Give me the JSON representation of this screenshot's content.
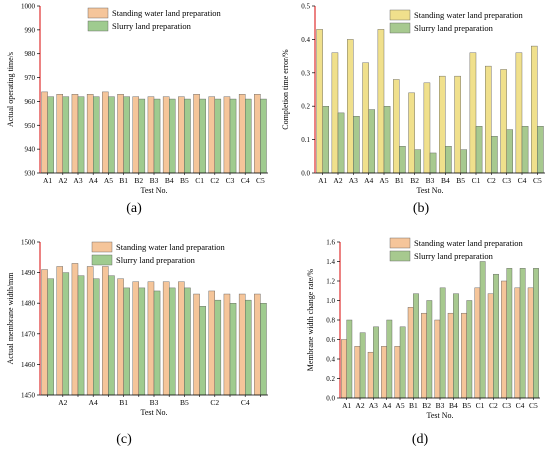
{
  "colors": {
    "standing_water": "#F5C59A",
    "standing_water_alt": "#F0E08C",
    "slurry": "#9FCB8F",
    "slurry_alt": "#A7C98F",
    "axis_red": "#E03030",
    "edge": "#555555"
  },
  "chart_data": [
    {
      "panel": "(a)",
      "type": "bar",
      "ylabel": "Actual operating time/s",
      "xlabel": "Test No.",
      "ylim": [
        930,
        1000
      ],
      "yticks": [
        "930",
        "940",
        "950",
        "960",
        "970",
        "980",
        "990",
        "1000"
      ],
      "categories": [
        "A1",
        "A2",
        "A3",
        "A4",
        "A5",
        "B1",
        "B2",
        "B3",
        "B4",
        "B5",
        "C1",
        "C2",
        "C3",
        "C4",
        "C5"
      ],
      "category_labels": [
        "A1",
        "A2",
        "A3",
        "A4",
        "A5",
        "B1",
        "B2",
        "B3",
        "B4",
        "B5",
        "C1",
        "C2",
        "C3",
        "C4",
        "C5"
      ],
      "legend_position": "top-right",
      "series": [
        {
          "name": "Standing water land preparation",
          "values": [
            964,
            963,
            963,
            963,
            964,
            963,
            962,
            962,
            962,
            962,
            963,
            962,
            962,
            963,
            963
          ]
        },
        {
          "name": "Slurry land preparation",
          "values": [
            962,
            962,
            962,
            962,
            962,
            962,
            961,
            961,
            961,
            961,
            961,
            961,
            961,
            961,
            961
          ]
        }
      ]
    },
    {
      "panel": "(b)",
      "type": "bar",
      "ylabel": "Completion time error/%",
      "xlabel": "Test No.",
      "ylim": [
        0,
        0.5
      ],
      "yticks": [
        "0.0",
        "0.1",
        "0.2",
        "0.3",
        "0.4",
        "0.5"
      ],
      "categories": [
        "A1",
        "A2",
        "A3",
        "A4",
        "A5",
        "B1",
        "B2",
        "B3",
        "B4",
        "B5",
        "C1",
        "C2",
        "C3",
        "C4",
        "C5"
      ],
      "category_labels": [
        "A1",
        "A2",
        "A3",
        "A4",
        "A5",
        "B1",
        "B2",
        "B3",
        "B4",
        "B5",
        "C1",
        "C2",
        "C3",
        "C4",
        "C5"
      ],
      "legend_position": "top-right",
      "series": [
        {
          "name": "Standing water land preparation",
          "values": [
            0.43,
            0.36,
            0.4,
            0.33,
            0.43,
            0.28,
            0.24,
            0.27,
            0.29,
            0.29,
            0.36,
            0.32,
            0.31,
            0.36,
            0.38
          ]
        },
        {
          "name": "Slurry land preparation",
          "values": [
            0.2,
            0.18,
            0.17,
            0.19,
            0.2,
            0.08,
            0.07,
            0.06,
            0.08,
            0.07,
            0.14,
            0.11,
            0.13,
            0.14,
            0.14
          ]
        }
      ]
    },
    {
      "panel": "(c)",
      "type": "bar",
      "ylabel": "Actual membrane width/mm",
      "xlabel": "Test No.",
      "ylim": [
        1450,
        1500
      ],
      "yticks": [
        "1450",
        "1460",
        "1470",
        "1480",
        "1490",
        "1500"
      ],
      "categories": [
        "A1",
        "A2",
        "A3",
        "A4",
        "A5",
        "B1",
        "B2",
        "B3",
        "B4",
        "B5",
        "C1",
        "C2",
        "C3",
        "C4",
        "C5"
      ],
      "category_labels": [
        "",
        "A2",
        "",
        "A4",
        "",
        "B1",
        "",
        "B3",
        "",
        "B5",
        "",
        "C2",
        "",
        "C4",
        ""
      ],
      "legend_position": "top-right",
      "series": [
        {
          "name": "Standing water land preparation",
          "values": [
            1491,
            1492,
            1493,
            1492,
            1492,
            1488,
            1487,
            1487,
            1487,
            1487,
            1483,
            1484,
            1483,
            1483,
            1483
          ]
        },
        {
          "name": "Slurry land preparation",
          "values": [
            1488,
            1490,
            1489,
            1488,
            1489,
            1485,
            1485,
            1484,
            1485,
            1485,
            1479,
            1481,
            1480,
            1481,
            1480
          ]
        }
      ]
    },
    {
      "panel": "(d)",
      "type": "bar",
      "ylabel": "Membrane width change rate/%",
      "xlabel": "Test No.",
      "ylim": [
        0.0,
        1.6
      ],
      "yticks": [
        "0.0",
        "0.2",
        "0.4",
        "0.6",
        "0.8",
        "1.0",
        "1.2",
        "1.4",
        "1.6"
      ],
      "categories": [
        "A1",
        "A2",
        "A3",
        "A4",
        "A5",
        "B1",
        "B2",
        "B3",
        "B4",
        "B5",
        "C1",
        "C2",
        "C3",
        "C4",
        "C5"
      ],
      "category_labels": [
        "A1",
        "A2",
        "A3",
        "A4",
        "A5",
        "B1",
        "B2",
        "B3",
        "B4",
        "B5",
        "C1",
        "C2",
        "C3",
        "C4",
        "C5"
      ],
      "legend_position": "top-right",
      "series": [
        {
          "name": "Standing water land preparation",
          "values": [
            0.6,
            0.53,
            0.47,
            0.53,
            0.53,
            0.93,
            0.87,
            0.8,
            0.87,
            0.87,
            1.13,
            1.07,
            1.2,
            1.13,
            1.13
          ]
        },
        {
          "name": "Slurry land preparation",
          "values": [
            0.8,
            0.67,
            0.73,
            0.8,
            0.73,
            1.07,
            1.0,
            1.13,
            1.07,
            1.0,
            1.4,
            1.27,
            1.33,
            1.33,
            1.33
          ]
        }
      ]
    }
  ]
}
